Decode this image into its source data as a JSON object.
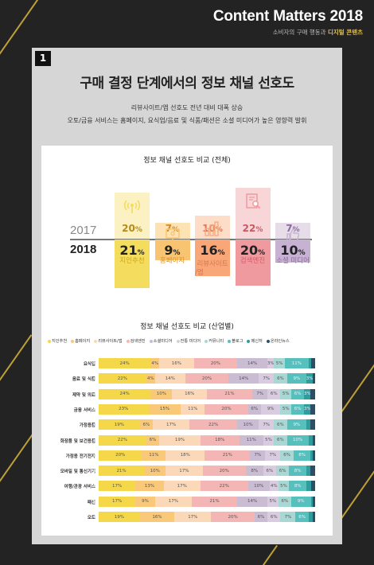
{
  "brand": {
    "title": "Content Matters 2018",
    "subtitle_lead": "소비자의 구매 행동과 ",
    "subtitle_strong": "디지털 콘텐츠"
  },
  "section_number": "1",
  "heading": "구매 결정 단계에서의 정보 채널 선호도",
  "intro": [
    "리뷰사이트/앱 선호도 전년 대비 대폭 상승",
    "오토/금융 서비스는 홈페이지, 요식업/음료 및 식품/패션은 소셜 미디어가 높은 영향력 발휘"
  ],
  "chart_data": [
    {
      "type": "bar",
      "title": "정보 채널 선호도 비교 (전체)",
      "year_labels": [
        "2017",
        "2018"
      ],
      "unit": "%",
      "categories": [
        "지인추천",
        "홈페이지",
        "리뷰사이트/앱",
        "검색엔진",
        "소셜 미디어"
      ],
      "category_lines": [
        [
          "지인추천"
        ],
        [
          "홈페이지"
        ],
        [
          "리뷰사이트",
          "/앱"
        ],
        [
          "검색엔진"
        ],
        [
          "소셜 미디어"
        ]
      ],
      "series": [
        {
          "name": "2017",
          "values": [
            20,
            7,
            10,
            22,
            7
          ]
        },
        {
          "name": "2018",
          "values": [
            21,
            9,
            16,
            20,
            10
          ]
        }
      ],
      "colors": {
        "light": [
          "#fbf1c2",
          "#fde2b3",
          "#fddcc8",
          "#f8d5d6",
          "#e6dde9"
        ],
        "dark": [
          "#f4dd5e",
          "#f9c471",
          "#f9a678",
          "#ef9a9e",
          "#c7b2d3"
        ],
        "v17": [
          "#b88a1a",
          "#d18a28",
          "#d77a55",
          "#c45a64",
          "#8a6a9e"
        ],
        "label": [
          "#c9a41c",
          "#d9901f",
          "#d9774e",
          "#cf5d68",
          "#8d6aa3"
        ]
      },
      "icons": [
        "broadcast-icon",
        "monitor-icon",
        "bar-chart-icon",
        "search-document-icon",
        "thumbs-up-icon"
      ]
    },
    {
      "type": "bar",
      "stacked": true,
      "title": "정보 채널 선호도 비교 (산업별)",
      "unit": "%",
      "legend_position": "top",
      "legend": [
        "지인추천",
        "홈페이지",
        "리뷰사이트/앱",
        "검색엔진",
        "소셜미디어",
        "전통 미디어",
        "커뮤니티",
        "블로그",
        "메신저",
        "온라인뉴스"
      ],
      "colors": [
        "#f5d84a",
        "#f9c878",
        "#fbd9b8",
        "#f4b6b4",
        "#c9bcd3",
        "#d9cce1",
        "#a9d8d4",
        "#56c0bd",
        "#2f9c9e",
        "#2d4f65"
      ],
      "categories": [
        "요식업",
        "음료 및 식품",
        "제약 및 의료",
        "금융 서비스",
        "가정용품",
        "화장품 및 보건용품",
        "가정용 전기전자",
        "모바일 및 통신기기",
        "여행/관광 서비스",
        "패션",
        "오토"
      ],
      "rows": [
        [
          24,
          4,
          16,
          20,
          14,
          3,
          5,
          11,
          1,
          2
        ],
        [
          22,
          4,
          14,
          20,
          14,
          7,
          6,
          9,
          3,
          1
        ],
        [
          24,
          10,
          16,
          21,
          7,
          6,
          5,
          6,
          3,
          2
        ],
        [
          23,
          15,
          11,
          20,
          6,
          9,
          5,
          6,
          3,
          2
        ],
        [
          19,
          6,
          17,
          22,
          10,
          7,
          6,
          9,
          2,
          2
        ],
        [
          22,
          6,
          19,
          18,
          11,
          5,
          6,
          10,
          2,
          1
        ],
        [
          20,
          11,
          18,
          21,
          7,
          7,
          6,
          8,
          1,
          1
        ],
        [
          21,
          10,
          17,
          20,
          8,
          6,
          6,
          8,
          2,
          2
        ],
        [
          17,
          13,
          17,
          22,
          10,
          4,
          5,
          8,
          2,
          2
        ],
        [
          17,
          9,
          17,
          21,
          14,
          5,
          6,
          9,
          1,
          1
        ],
        [
          19,
          16,
          17,
          20,
          6,
          6,
          7,
          6,
          2,
          1
        ]
      ]
    }
  ]
}
